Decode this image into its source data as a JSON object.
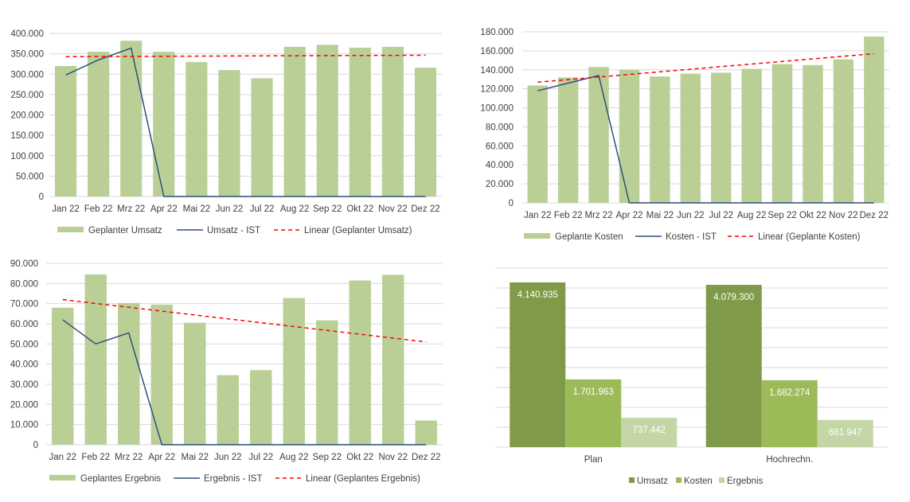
{
  "colors": {
    "planned_bar": "#b9cf96",
    "actual_line": "#2f4f7f",
    "trend_line": "#ff0000",
    "grid": "#d9d9d9",
    "umsatz": "#7f9a48",
    "kosten": "#9bbb59",
    "ergebnis": "#c4d6a6"
  },
  "chart_data": [
    {
      "id": "umsatz",
      "type": "bar",
      "title": "",
      "xlabel": "",
      "ylabel": "",
      "categories": [
        "Jan 22",
        "Feb 22",
        "Mrz 22",
        "Apr 22",
        "Mai 22",
        "Jun 22",
        "Jul 22",
        "Aug 22",
        "Sep 22",
        "Okt 22",
        "Nov 22",
        "Dez 22"
      ],
      "ylim": [
        0,
        400000
      ],
      "ystep": 50000,
      "ytick_labels": [
        "0",
        "50.000",
        "100.000",
        "150.000",
        "200.000",
        "250.000",
        "300.000",
        "350.000",
        "400.000"
      ],
      "grid": true,
      "legend_position": "bottom",
      "series": [
        {
          "name": "Geplanter Umsatz",
          "kind": "bar",
          "values": [
            320000,
            355000,
            382000,
            355000,
            330000,
            310000,
            290000,
            367000,
            372000,
            365000,
            367000,
            316000
          ]
        },
        {
          "name": "Umsatz - IST",
          "kind": "line",
          "values": [
            298000,
            335000,
            364000,
            0,
            0,
            0,
            0,
            0,
            0,
            0,
            0,
            0
          ]
        },
        {
          "name": "Linear (Geplanter Umsatz)",
          "kind": "trend",
          "values": [
            343000,
            346500
          ]
        }
      ]
    },
    {
      "id": "kosten",
      "type": "bar",
      "title": "",
      "xlabel": "",
      "ylabel": "",
      "categories": [
        "Jan 22",
        "Feb 22",
        "Mrz 22",
        "Apr 22",
        "Mai 22",
        "Jun 22",
        "Jul 22",
        "Aug 22",
        "Sep 22",
        "Okt 22",
        "Nov 22",
        "Dez 22"
      ],
      "ylim": [
        0,
        180000
      ],
      "ystep": 20000,
      "ytick_labels": [
        "0",
        "20.000",
        "40.000",
        "60.000",
        "80.000",
        "100.000",
        "120.000",
        "140.000",
        "160.000",
        "180.000"
      ],
      "grid": true,
      "legend_position": "bottom",
      "series": [
        {
          "name": "Geplante Kosten",
          "kind": "bar",
          "values": [
            123500,
            132000,
            143000,
            140000,
            133000,
            136000,
            137000,
            141000,
            146000,
            145000,
            151000,
            175000
          ]
        },
        {
          "name": "Kosten - IST",
          "kind": "line",
          "values": [
            118000,
            126000,
            134000,
            0,
            0,
            0,
            0,
            0,
            0,
            0,
            0,
            0
          ]
        },
        {
          "name": "Linear (Geplante Kosten)",
          "kind": "trend",
          "values": [
            127000,
            157000
          ]
        }
      ]
    },
    {
      "id": "ergebnis",
      "type": "bar",
      "title": "",
      "xlabel": "",
      "ylabel": "",
      "categories": [
        "Jan 22",
        "Feb 22",
        "Mrz 22",
        "Apr 22",
        "Mai 22",
        "Jun 22",
        "Jul 22",
        "Aug 22",
        "Sep 22",
        "Okt 22",
        "Nov 22",
        "Dez 22"
      ],
      "ylim": [
        0,
        90000
      ],
      "ystep": 10000,
      "ytick_labels": [
        "0",
        "10.000",
        "20.000",
        "30.000",
        "40.000",
        "50.000",
        "60.000",
        "70.000",
        "80.000",
        "90.000"
      ],
      "grid": true,
      "legend_position": "bottom",
      "series": [
        {
          "name": "Geplantes Ergebnis",
          "kind": "bar",
          "values": [
            68000,
            84500,
            70300,
            69500,
            60500,
            34500,
            37000,
            72800,
            61700,
            81500,
            84300,
            12000
          ]
        },
        {
          "name": "Ergebnis - IST",
          "kind": "line",
          "values": [
            62000,
            50000,
            55500,
            0,
            0,
            0,
            0,
            0,
            0,
            0,
            0,
            0
          ]
        },
        {
          "name": "Linear (Geplantes Ergebnis)",
          "kind": "trend",
          "values": [
            72000,
            51000
          ]
        }
      ]
    },
    {
      "id": "summary",
      "type": "bar",
      "title": "",
      "xlabel": "",
      "ylabel": "",
      "categories": [
        "Plan",
        "Hochrechn."
      ],
      "ylim": [
        0,
        4500000
      ],
      "ystep": 500000,
      "grid": true,
      "legend_position": "bottom",
      "series": [
        {
          "name": "Umsatz",
          "values": [
            4140935,
            4079300
          ],
          "labels": [
            "4.140.935",
            "4.079.300"
          ]
        },
        {
          "name": "Kosten",
          "values": [
            1701963,
            1682274
          ],
          "labels": [
            "1.701.963",
            "1.682.274"
          ]
        },
        {
          "name": "Ergebnis",
          "values": [
            737442,
            681947
          ],
          "labels": [
            "737.442",
            "681.947"
          ]
        }
      ]
    }
  ]
}
